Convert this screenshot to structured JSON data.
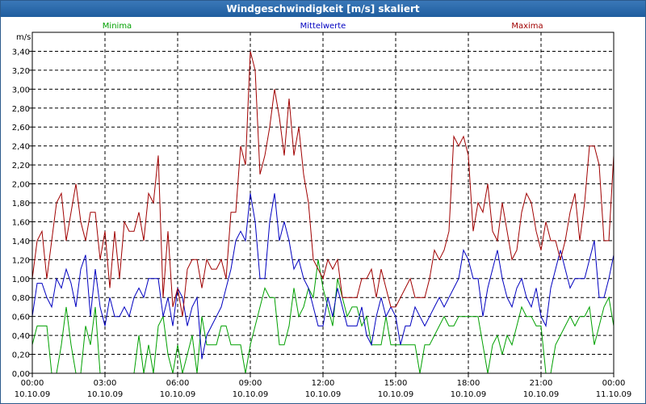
{
  "chart_data": {
    "type": "line",
    "title": "Windgeschwindigkeit [m/s] skaliert",
    "ylabel": "m/s",
    "ylim": [
      0,
      3.6
    ],
    "yticks": [
      "0,00",
      "0,20",
      "0,40",
      "0,60",
      "0,80",
      "1,00",
      "1,20",
      "1,40",
      "1,60",
      "1,80",
      "2,00",
      "2,20",
      "2,40",
      "2,60",
      "2,80",
      "3,00",
      "3,20",
      "3,40"
    ],
    "xticks": [
      {
        "time": "00:00",
        "date": "10.10.09"
      },
      {
        "time": "03:00",
        "date": "10.10.09"
      },
      {
        "time": "06:00",
        "date": "10.10.09"
      },
      {
        "time": "09:00",
        "date": "10.10.09"
      },
      {
        "time": "12:00",
        "date": "10.10.09"
      },
      {
        "time": "15:00",
        "date": "10.10.09"
      },
      {
        "time": "18:00",
        "date": "10.10.09"
      },
      {
        "time": "21:00",
        "date": "10.10.09"
      },
      {
        "time": "00:00",
        "date": "11.10.09"
      }
    ],
    "xlim_hours": [
      0,
      24
    ],
    "series": [
      {
        "name": "Minima",
        "color": "#00a000",
        "x": [
          0,
          0.2,
          0.4,
          0.6,
          0.8,
          1.0,
          1.2,
          1.4,
          1.6,
          1.8,
          2.0,
          2.2,
          2.4,
          2.6,
          2.8,
          3.0,
          3.2,
          3.4,
          3.6,
          3.8,
          4.0,
          4.2,
          4.4,
          4.6,
          4.8,
          5.0,
          5.2,
          5.4,
          5.6,
          5.8,
          6.0,
          6.2,
          6.4,
          6.6,
          6.8,
          7.0,
          7.2,
          7.4,
          7.6,
          7.8,
          8.0,
          8.2,
          8.4,
          8.6,
          8.8,
          9.0,
          9.2,
          9.4,
          9.6,
          9.8,
          10.0,
          10.2,
          10.4,
          10.6,
          10.8,
          11.0,
          11.2,
          11.4,
          11.6,
          11.8,
          12.0,
          12.2,
          12.4,
          12.6,
          12.8,
          13.0,
          13.2,
          13.4,
          13.6,
          13.8,
          14.0,
          14.2,
          14.4,
          14.6,
          14.8,
          15.0,
          15.2,
          15.4,
          15.6,
          15.8,
          16.0,
          16.2,
          16.4,
          16.6,
          16.8,
          17.0,
          17.2,
          17.4,
          17.6,
          17.8,
          18.0,
          18.2,
          18.4,
          18.6,
          18.8,
          19.0,
          19.2,
          19.4,
          19.6,
          19.8,
          20.0,
          20.2,
          20.4,
          20.6,
          20.8,
          21.0,
          21.2,
          21.4,
          21.6,
          21.8,
          22.0,
          22.2,
          22.4,
          22.6,
          22.8,
          23.0,
          23.2,
          23.4,
          23.6,
          23.8,
          24.0
        ],
        "values": [
          0.3,
          0.5,
          0.5,
          0.5,
          0,
          0,
          0.3,
          0.7,
          0.3,
          0,
          0,
          0.5,
          0.3,
          0.7,
          0,
          0,
          0,
          0,
          0,
          0,
          0,
          0,
          0.4,
          0,
          0.3,
          0,
          0.5,
          0.6,
          0.2,
          0,
          0.3,
          0,
          0.2,
          0.4,
          0,
          0.6,
          0.3,
          0.3,
          0.3,
          0.5,
          0.5,
          0.3,
          0.3,
          0.3,
          0,
          0.3,
          0.5,
          0.7,
          0.9,
          0.8,
          0.8,
          0.3,
          0.3,
          0.5,
          0.9,
          0.6,
          0.7,
          0.9,
          0.8,
          1.2,
          0.9,
          0.7,
          0.5,
          1.0,
          0.8,
          0.6,
          0.7,
          0.7,
          0.5,
          0.6,
          0.3,
          0.3,
          0.3,
          0.6,
          0.3,
          0.3,
          0.3,
          0.3,
          0.3,
          0.3,
          0,
          0.3,
          0.3,
          0.4,
          0.5,
          0.6,
          0.5,
          0.5,
          0.6,
          0.6,
          0.6,
          0.6,
          0.6,
          0.3,
          0,
          0.3,
          0.4,
          0.2,
          0.4,
          0.3,
          0.5,
          0.7,
          0.6,
          0.6,
          0.5,
          0.5,
          0,
          0,
          0.3,
          0.4,
          0.5,
          0.6,
          0.5,
          0.6,
          0.6,
          0.7,
          0.3,
          0.5,
          0.7,
          0.8,
          0.5
        ]
      },
      {
        "name": "Mittelwerte",
        "color": "#0000c0",
        "x": [
          0,
          0.2,
          0.4,
          0.6,
          0.8,
          1.0,
          1.2,
          1.4,
          1.6,
          1.8,
          2.0,
          2.2,
          2.4,
          2.6,
          2.8,
          3.0,
          3.2,
          3.4,
          3.6,
          3.8,
          4.0,
          4.2,
          4.4,
          4.6,
          4.8,
          5.0,
          5.2,
          5.4,
          5.6,
          5.8,
          6.0,
          6.2,
          6.4,
          6.6,
          6.8,
          7.0,
          7.2,
          7.4,
          7.6,
          7.8,
          8.0,
          8.2,
          8.4,
          8.6,
          8.8,
          9.0,
          9.2,
          9.4,
          9.6,
          9.8,
          10.0,
          10.2,
          10.4,
          10.6,
          10.8,
          11.0,
          11.2,
          11.4,
          11.6,
          11.8,
          12.0,
          12.2,
          12.4,
          12.6,
          12.8,
          13.0,
          13.2,
          13.4,
          13.6,
          13.8,
          14.0,
          14.2,
          14.4,
          14.6,
          14.8,
          15.0,
          15.2,
          15.4,
          15.6,
          15.8,
          16.0,
          16.2,
          16.4,
          16.6,
          16.8,
          17.0,
          17.2,
          17.4,
          17.6,
          17.8,
          18.0,
          18.2,
          18.4,
          18.6,
          18.8,
          19.0,
          19.2,
          19.4,
          19.6,
          19.8,
          20.0,
          20.2,
          20.4,
          20.6,
          20.8,
          21.0,
          21.2,
          21.4,
          21.6,
          21.8,
          22.0,
          22.2,
          22.4,
          22.6,
          22.8,
          23.0,
          23.2,
          23.4,
          23.6,
          23.8,
          24.0
        ],
        "values": [
          0.6,
          0.95,
          0.95,
          0.8,
          0.7,
          1.0,
          0.9,
          1.1,
          0.95,
          0.7,
          1.1,
          1.25,
          0.6,
          1.1,
          0.7,
          0.5,
          0.8,
          0.6,
          0.6,
          0.7,
          0.6,
          0.8,
          0.9,
          0.8,
          1.0,
          1.0,
          1.0,
          0.6,
          0.8,
          0.5,
          0.9,
          0.8,
          0.5,
          0.7,
          0.8,
          0.15,
          0.4,
          0.5,
          0.6,
          0.7,
          0.9,
          1.1,
          1.4,
          1.5,
          1.4,
          1.9,
          1.6,
          1.0,
          1.0,
          1.6,
          1.9,
          1.4,
          1.6,
          1.4,
          1.1,
          1.2,
          1.0,
          0.9,
          0.7,
          0.5,
          0.5,
          0.8,
          0.6,
          0.9,
          0.7,
          0.5,
          0.5,
          0.5,
          0.7,
          0.4,
          0.3,
          0.6,
          0.8,
          0.6,
          0.7,
          0.6,
          0.3,
          0.5,
          0.5,
          0.7,
          0.6,
          0.5,
          0.6,
          0.7,
          0.8,
          0.7,
          0.8,
          0.9,
          1.0,
          1.3,
          1.2,
          1.0,
          1.0,
          0.6,
          0.9,
          1.1,
          1.3,
          1.0,
          0.8,
          0.7,
          0.9,
          1.0,
          0.8,
          0.7,
          0.9,
          0.6,
          0.5,
          0.9,
          1.1,
          1.3,
          1.1,
          0.9,
          1.0,
          1.0,
          1.0,
          1.2,
          1.4,
          0.8,
          0.8,
          1.0,
          1.25
        ]
      },
      {
        "name": "Maxima",
        "color": "#a00000",
        "x": [
          0,
          0.2,
          0.4,
          0.6,
          0.8,
          1.0,
          1.2,
          1.4,
          1.6,
          1.8,
          2.0,
          2.2,
          2.4,
          2.6,
          2.8,
          3.0,
          3.2,
          3.4,
          3.6,
          3.8,
          4.0,
          4.2,
          4.4,
          4.6,
          4.8,
          5.0,
          5.2,
          5.4,
          5.6,
          5.8,
          6.0,
          6.2,
          6.4,
          6.6,
          6.8,
          7.0,
          7.2,
          7.4,
          7.6,
          7.8,
          8.0,
          8.2,
          8.4,
          8.6,
          8.8,
          9.0,
          9.2,
          9.4,
          9.6,
          9.8,
          10.0,
          10.2,
          10.4,
          10.6,
          10.8,
          11.0,
          11.2,
          11.4,
          11.6,
          11.8,
          12.0,
          12.2,
          12.4,
          12.6,
          12.8,
          13.0,
          13.2,
          13.4,
          13.6,
          13.8,
          14.0,
          14.2,
          14.4,
          14.6,
          14.8,
          15.0,
          15.2,
          15.4,
          15.6,
          15.8,
          16.0,
          16.2,
          16.4,
          16.6,
          16.8,
          17.0,
          17.2,
          17.4,
          17.6,
          17.8,
          18.0,
          18.2,
          18.4,
          18.6,
          18.8,
          19.0,
          19.2,
          19.4,
          19.6,
          19.8,
          20.0,
          20.2,
          20.4,
          20.6,
          20.8,
          21.0,
          21.2,
          21.4,
          21.6,
          21.8,
          22.0,
          22.2,
          22.4,
          22.6,
          22.8,
          23.0,
          23.2,
          23.4,
          23.6,
          23.8,
          24.0
        ],
        "values": [
          1.0,
          1.4,
          1.5,
          1.0,
          1.4,
          1.8,
          1.9,
          1.4,
          1.7,
          2.0,
          1.6,
          1.4,
          1.7,
          1.7,
          1.2,
          1.5,
          0.9,
          1.5,
          1.0,
          1.6,
          1.5,
          1.5,
          1.7,
          1.4,
          1.9,
          1.8,
          2.3,
          0.8,
          1.5,
          0.7,
          0.9,
          0.6,
          1.1,
          1.2,
          1.2,
          0.9,
          1.2,
          1.1,
          1.1,
          1.2,
          1.0,
          1.7,
          1.7,
          2.4,
          2.2,
          3.4,
          3.2,
          2.1,
          2.3,
          2.6,
          3.0,
          2.7,
          2.3,
          2.9,
          2.3,
          2.6,
          2.1,
          1.8,
          1.2,
          1.1,
          1.0,
          1.2,
          1.1,
          1.2,
          0.8,
          0.8,
          0.8,
          0.8,
          1.0,
          1.0,
          1.1,
          0.8,
          1.1,
          0.9,
          0.7,
          0.7,
          0.8,
          0.9,
          1.0,
          0.8,
          0.8,
          0.8,
          1.0,
          1.3,
          1.2,
          1.3,
          1.5,
          2.5,
          2.4,
          2.5,
          2.3,
          1.5,
          1.8,
          1.7,
          2.0,
          1.5,
          1.4,
          1.8,
          1.5,
          1.2,
          1.3,
          1.7,
          1.9,
          1.8,
          1.5,
          1.3,
          1.6,
          1.4,
          1.4,
          1.2,
          1.4,
          1.7,
          1.9,
          1.4,
          1.8,
          2.4,
          2.4,
          2.2,
          1.4,
          1.4,
          2.3
        ]
      }
    ]
  }
}
